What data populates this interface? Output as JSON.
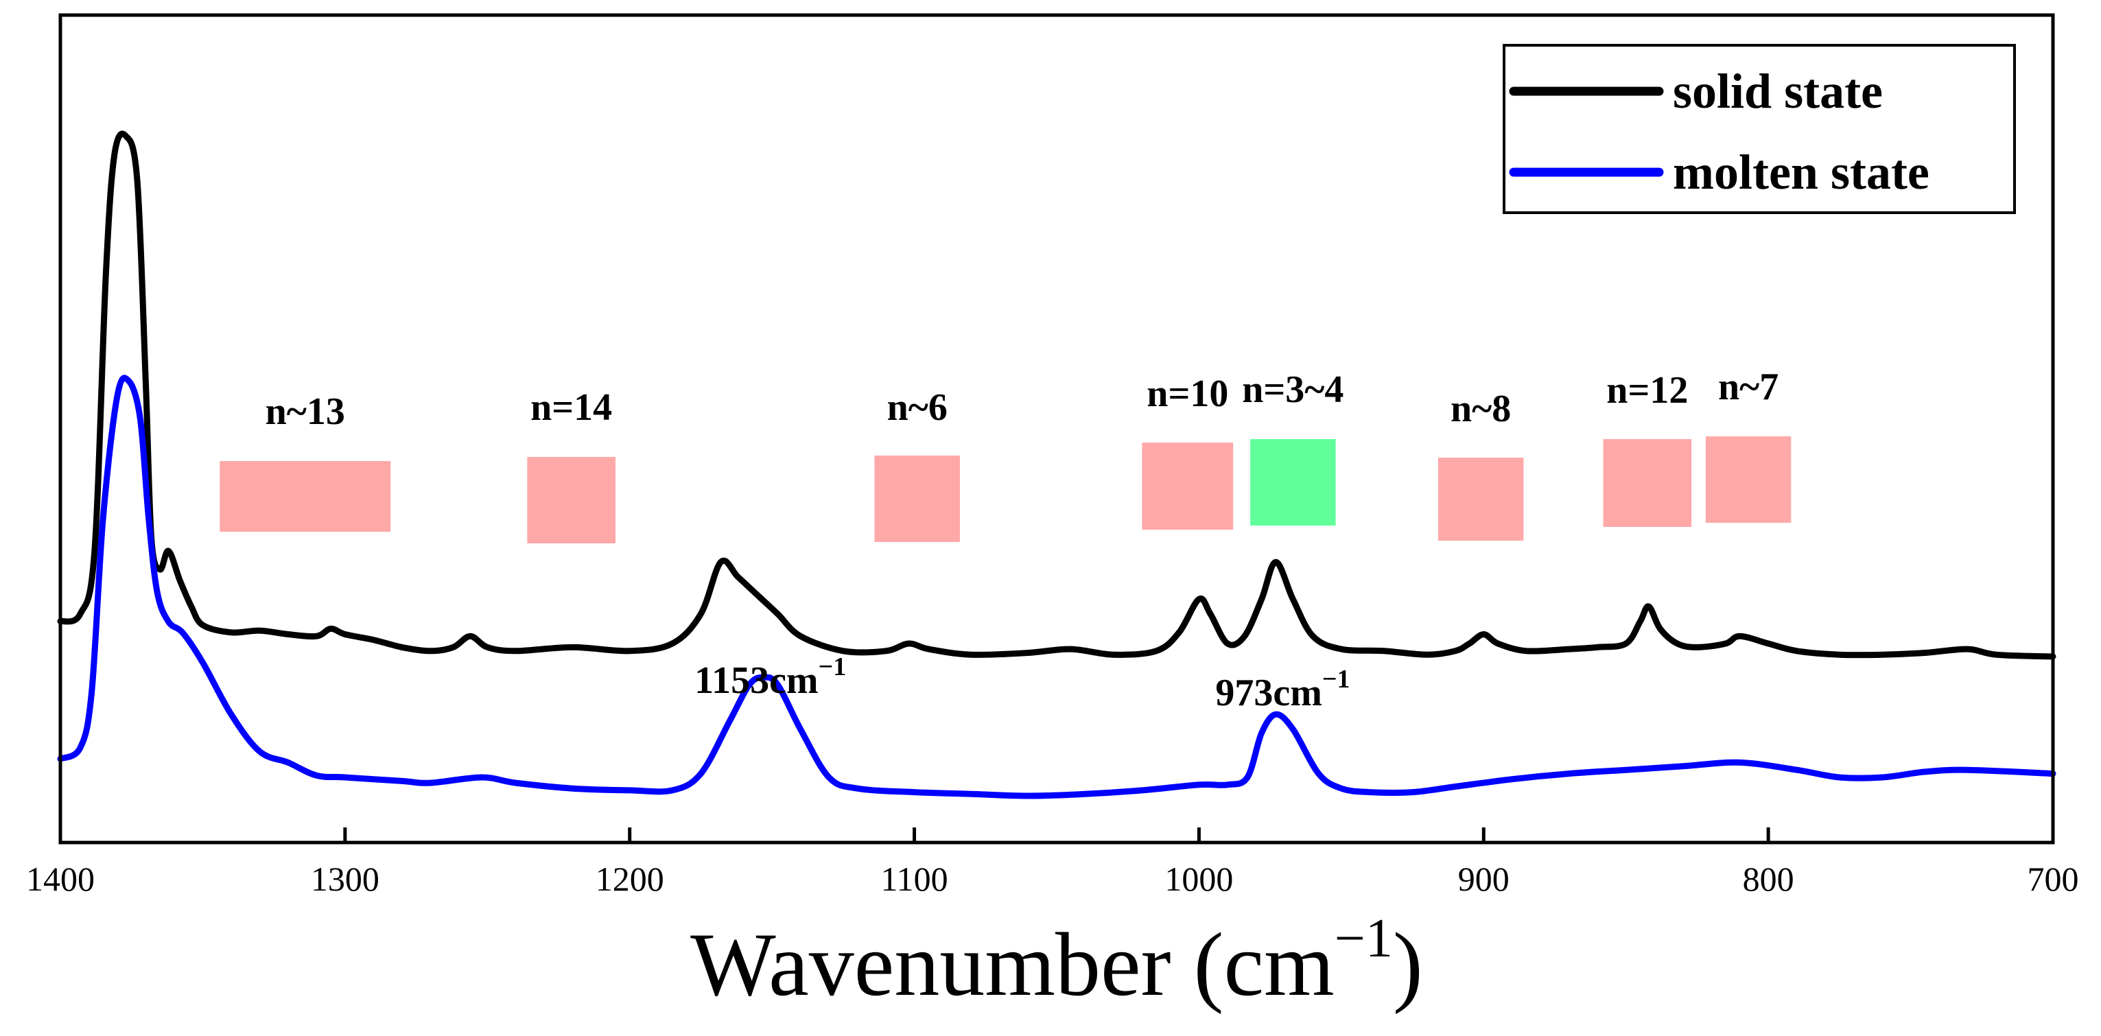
{
  "chart_data": {
    "type": "line",
    "xlabel_main": "Wavenumber (cm",
    "xlabel_sup": "−1",
    "xlabel_close": ")",
    "ylabel": "",
    "xlim": [
      1400,
      700
    ],
    "x_ticks": [
      1400,
      1300,
      1200,
      1100,
      1000,
      900,
      800,
      700
    ],
    "grid": false,
    "legend_position": "top-right",
    "series": [
      {
        "name": "solid state",
        "color": "#000000",
        "points": [
          [
            1400,
            0.36
          ],
          [
            1393,
            0.38
          ],
          [
            1388,
            0.55
          ],
          [
            1384,
            1.3
          ],
          [
            1381,
            1.62
          ],
          [
            1377,
            1.67
          ],
          [
            1373,
            1.55
          ],
          [
            1370,
            1.0
          ],
          [
            1368,
            0.58
          ],
          [
            1365,
            0.5
          ],
          [
            1362,
            0.55
          ],
          [
            1358,
            0.47
          ],
          [
            1354,
            0.4
          ],
          [
            1350,
            0.35
          ],
          [
            1340,
            0.33
          ],
          [
            1330,
            0.335
          ],
          [
            1320,
            0.325
          ],
          [
            1310,
            0.32
          ],
          [
            1305,
            0.34
          ],
          [
            1300,
            0.325
          ],
          [
            1290,
            0.31
          ],
          [
            1280,
            0.29
          ],
          [
            1270,
            0.28
          ],
          [
            1262,
            0.29
          ],
          [
            1256,
            0.32
          ],
          [
            1250,
            0.29
          ],
          [
            1240,
            0.28
          ],
          [
            1220,
            0.29
          ],
          [
            1200,
            0.28
          ],
          [
            1185,
            0.3
          ],
          [
            1175,
            0.38
          ],
          [
            1168,
            0.52
          ],
          [
            1162,
            0.48
          ],
          [
            1155,
            0.43
          ],
          [
            1148,
            0.38
          ],
          [
            1140,
            0.32
          ],
          [
            1125,
            0.28
          ],
          [
            1110,
            0.28
          ],
          [
            1102,
            0.3
          ],
          [
            1095,
            0.285
          ],
          [
            1080,
            0.27
          ],
          [
            1060,
            0.275
          ],
          [
            1045,
            0.285
          ],
          [
            1030,
            0.27
          ],
          [
            1015,
            0.28
          ],
          [
            1007,
            0.33
          ],
          [
            1000,
            0.42
          ],
          [
            996,
            0.38
          ],
          [
            990,
            0.3
          ],
          [
            984,
            0.32
          ],
          [
            978,
            0.42
          ],
          [
            973,
            0.52
          ],
          [
            967,
            0.42
          ],
          [
            960,
            0.32
          ],
          [
            950,
            0.285
          ],
          [
            935,
            0.28
          ],
          [
            920,
            0.27
          ],
          [
            910,
            0.28
          ],
          [
            905,
            0.3
          ],
          [
            900,
            0.325
          ],
          [
            895,
            0.3
          ],
          [
            885,
            0.28
          ],
          [
            870,
            0.285
          ],
          [
            860,
            0.29
          ],
          [
            850,
            0.3
          ],
          [
            845,
            0.36
          ],
          [
            842,
            0.4
          ],
          [
            838,
            0.34
          ],
          [
            832,
            0.3
          ],
          [
            825,
            0.29
          ],
          [
            815,
            0.3
          ],
          [
            810,
            0.32
          ],
          [
            800,
            0.3
          ],
          [
            790,
            0.28
          ],
          [
            775,
            0.27
          ],
          [
            760,
            0.27
          ],
          [
            745,
            0.275
          ],
          [
            730,
            0.285
          ],
          [
            720,
            0.27
          ],
          [
            700,
            0.265
          ]
        ]
      },
      {
        "name": "molten state",
        "color": "#0000ff",
        "points": [
          [
            1400,
            0.1
          ],
          [
            1393,
            0.13
          ],
          [
            1389,
            0.28
          ],
          [
            1385,
            0.75
          ],
          [
            1380,
            1.08
          ],
          [
            1376,
            1.12
          ],
          [
            1372,
            1.02
          ],
          [
            1369,
            0.75
          ],
          [
            1366,
            0.55
          ],
          [
            1362,
            0.47
          ],
          [
            1357,
            0.44
          ],
          [
            1350,
            0.36
          ],
          [
            1340,
            0.22
          ],
          [
            1330,
            0.12
          ],
          [
            1320,
            0.09
          ],
          [
            1310,
            0.055
          ],
          [
            1300,
            0.05
          ],
          [
            1280,
            0.04
          ],
          [
            1270,
            0.035
          ],
          [
            1252,
            0.05
          ],
          [
            1240,
            0.035
          ],
          [
            1220,
            0.02
          ],
          [
            1200,
            0.015
          ],
          [
            1185,
            0.015
          ],
          [
            1175,
            0.06
          ],
          [
            1165,
            0.2
          ],
          [
            1158,
            0.3
          ],
          [
            1153,
            0.32
          ],
          [
            1148,
            0.3
          ],
          [
            1140,
            0.18
          ],
          [
            1130,
            0.05
          ],
          [
            1120,
            0.02
          ],
          [
            1100,
            0.01
          ],
          [
            1080,
            0.005
          ],
          [
            1060,
            0.0
          ],
          [
            1040,
            0.005
          ],
          [
            1020,
            0.015
          ],
          [
            1000,
            0.03
          ],
          [
            990,
            0.03
          ],
          [
            983,
            0.05
          ],
          [
            978,
            0.17
          ],
          [
            973,
            0.22
          ],
          [
            967,
            0.18
          ],
          [
            958,
            0.06
          ],
          [
            950,
            0.02
          ],
          [
            940,
            0.01
          ],
          [
            925,
            0.01
          ],
          [
            910,
            0.025
          ],
          [
            890,
            0.045
          ],
          [
            870,
            0.06
          ],
          [
            850,
            0.07
          ],
          [
            830,
            0.08
          ],
          [
            810,
            0.09
          ],
          [
            790,
            0.07
          ],
          [
            775,
            0.05
          ],
          [
            760,
            0.05
          ],
          [
            745,
            0.065
          ],
          [
            730,
            0.07
          ],
          [
            700,
            0.06
          ]
        ]
      }
    ],
    "highlights": [
      {
        "label": "n~13",
        "x_start": 1344,
        "x_end": 1284,
        "color": "#ff9999"
      },
      {
        "label": "n=14",
        "x_start": 1236,
        "x_end": 1205,
        "color": "#ff9999"
      },
      {
        "label": "n~6",
        "x_start": 1114,
        "x_end": 1084,
        "color": "#ff9999"
      },
      {
        "label": "n=10",
        "x_start": 1020,
        "x_end": 988,
        "color": "#ff9999"
      },
      {
        "label": "n=3~4",
        "x_start": 982,
        "x_end": 952,
        "color": "#44ff88"
      },
      {
        "label": "n~8",
        "x_start": 916,
        "x_end": 886,
        "color": "#ff9999"
      },
      {
        "label": "n=12",
        "x_start": 858,
        "x_end": 827,
        "color": "#ff9999"
      },
      {
        "label": "n~7",
        "x_start": 822,
        "x_end": 792,
        "color": "#ff9999"
      }
    ],
    "peak_labels": [
      {
        "x": 1153,
        "main": "1153cm",
        "sup": "−1"
      },
      {
        "x": 973,
        "main": "973cm",
        "sup": "−1"
      }
    ]
  }
}
